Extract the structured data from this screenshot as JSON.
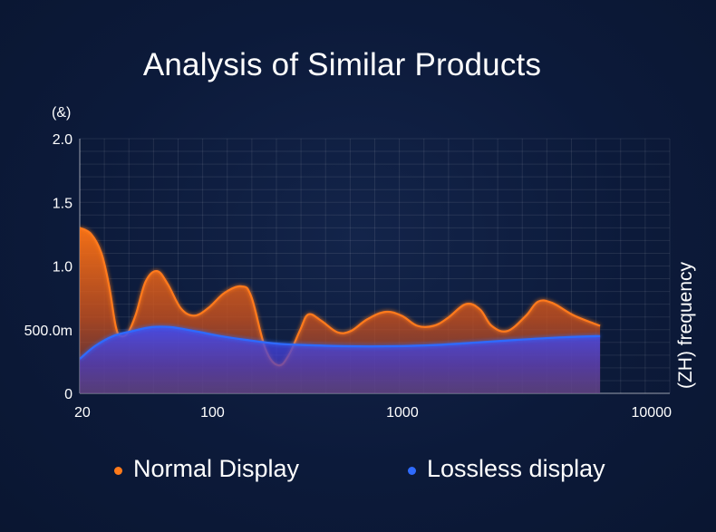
{
  "chart_data": {
    "type": "area",
    "title": "Analysis of Similar Products",
    "ylabel": "(&)",
    "xlabel": "(ZH) frequency",
    "x_scale": "log",
    "xlim": [
      20,
      10000
    ],
    "ylim": [
      0,
      2.0
    ],
    "x_ticks": [
      {
        "value": 20,
        "label": "20"
      },
      {
        "value": 100,
        "label": "100"
      },
      {
        "value": 1000,
        "label": "1000"
      },
      {
        "value": 10000,
        "label": "10000"
      }
    ],
    "y_ticks": [
      {
        "value": 0,
        "label": "0"
      },
      {
        "value": 0.5,
        "label": "500.0m"
      },
      {
        "value": 1.0,
        "label": "1.0"
      },
      {
        "value": 1.5,
        "label": "1.5"
      },
      {
        "value": 2.0,
        "label": "2.0"
      }
    ],
    "grid": true,
    "legend_position": "bottom",
    "series": [
      {
        "name": "Normal Display",
        "color": "#ff7a1a",
        "points": [
          [
            20,
            1.3
          ],
          [
            23,
            1.25
          ],
          [
            26,
            1.1
          ],
          [
            28.5,
            0.85
          ],
          [
            31,
            0.52
          ],
          [
            33,
            0.45
          ],
          [
            36,
            0.48
          ],
          [
            39.5,
            0.62
          ],
          [
            44.5,
            0.88
          ],
          [
            51,
            0.96
          ],
          [
            58,
            0.86
          ],
          [
            68,
            0.67
          ],
          [
            80,
            0.61
          ],
          [
            95,
            0.67
          ],
          [
            116,
            0.79
          ],
          [
            142,
            0.84
          ],
          [
            160,
            0.76
          ],
          [
            190,
            0.35
          ],
          [
            222,
            0.22
          ],
          [
            252,
            0.3
          ],
          [
            290,
            0.5
          ],
          [
            320,
            0.62
          ],
          [
            374,
            0.57
          ],
          [
            455,
            0.48
          ],
          [
            536,
            0.49
          ],
          [
            651,
            0.58
          ],
          [
            814,
            0.64
          ],
          [
            990,
            0.61
          ],
          [
            1200,
            0.53
          ],
          [
            1460,
            0.53
          ],
          [
            1730,
            0.59
          ],
          [
            2160,
            0.7
          ],
          [
            2560,
            0.66
          ],
          [
            2950,
            0.53
          ],
          [
            3580,
            0.49
          ],
          [
            4480,
            0.61
          ],
          [
            5180,
            0.72
          ],
          [
            6150,
            0.71
          ],
          [
            8040,
            0.61
          ],
          [
            11000,
            0.53
          ]
        ]
      },
      {
        "name": "Lossless display",
        "color": "#2f6bff",
        "points": [
          [
            20,
            0.27
          ],
          [
            24,
            0.37
          ],
          [
            30,
            0.45
          ],
          [
            38,
            0.49
          ],
          [
            48,
            0.52
          ],
          [
            60,
            0.52
          ],
          [
            80,
            0.49
          ],
          [
            110,
            0.45
          ],
          [
            150,
            0.42
          ],
          [
            220,
            0.39
          ],
          [
            300,
            0.38
          ],
          [
            500,
            0.37
          ],
          [
            900,
            0.37
          ],
          [
            1500,
            0.38
          ],
          [
            2500,
            0.4
          ],
          [
            4000,
            0.42
          ],
          [
            7000,
            0.44
          ],
          [
            11000,
            0.45
          ]
        ]
      }
    ]
  }
}
